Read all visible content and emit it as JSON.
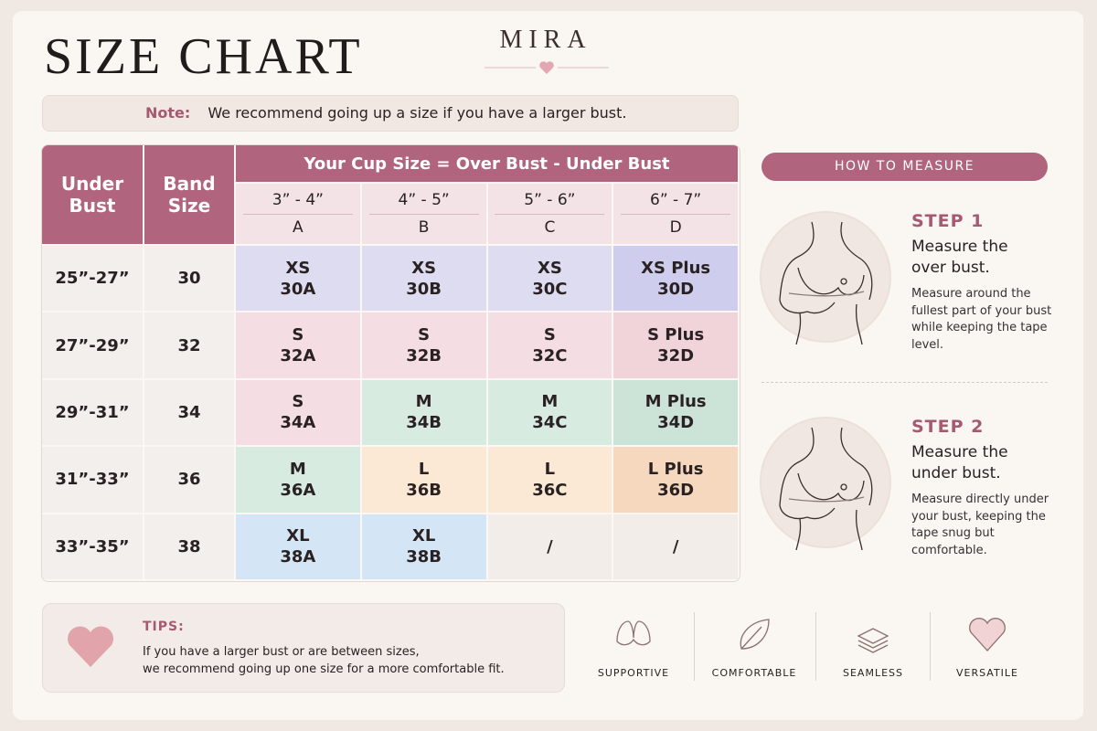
{
  "header": {
    "title": "SIZE CHART",
    "brand": "MIRA"
  },
  "note": {
    "label": "Note:",
    "text": "We recommend going up a size if you have a larger bust."
  },
  "table": {
    "headers": {
      "under_bust": "Under Bust",
      "band_size": "Band Size",
      "cup_size": "Your Cup Size = Over Bust - Under Bust"
    },
    "cups": [
      {
        "range": "3” - 4”",
        "letter": "A"
      },
      {
        "range": "4” - 5”",
        "letter": "B"
      },
      {
        "range": "5” - 6”",
        "letter": "C"
      },
      {
        "range": "6” - 7”",
        "letter": "D"
      }
    ],
    "rows": [
      {
        "under_bust": "25”-27”",
        "band": 30,
        "cells": [
          {
            "size": "XS",
            "code": "30A",
            "color": "#dedcf1"
          },
          {
            "size": "XS",
            "code": "30B",
            "color": "#dedcf1"
          },
          {
            "size": "XS",
            "code": "30C",
            "color": "#dedcf1"
          },
          {
            "size": "XS Plus",
            "code": "30D",
            "color": "#cfcdee"
          }
        ]
      },
      {
        "under_bust": "27”-29”",
        "band": 32,
        "cells": [
          {
            "size": "S",
            "code": "32A",
            "color": "#f5dee3"
          },
          {
            "size": "S",
            "code": "32B",
            "color": "#f5dee3"
          },
          {
            "size": "S",
            "code": "32C",
            "color": "#f5dee3"
          },
          {
            "size": "S Plus",
            "code": "32D",
            "color": "#f1d3da"
          }
        ]
      },
      {
        "under_bust": "29”-31”",
        "band": 34,
        "cells": [
          {
            "size": "S",
            "code": "34A",
            "color": "#f5dee3"
          },
          {
            "size": "M",
            "code": "34B",
            "color": "#d7ebe1"
          },
          {
            "size": "M",
            "code": "34C",
            "color": "#d7ebe1"
          },
          {
            "size": "M Plus",
            "code": "34D",
            "color": "#cce4d8"
          }
        ]
      },
      {
        "under_bust": "31”-33”",
        "band": 36,
        "cells": [
          {
            "size": "M",
            "code": "36A",
            "color": "#d7ebe1"
          },
          {
            "size": "L",
            "code": "36B",
            "color": "#fbe9d6"
          },
          {
            "size": "L",
            "code": "36C",
            "color": "#fbe9d6"
          },
          {
            "size": "L Plus",
            "code": "36D",
            "color": "#f6d8bf"
          }
        ]
      },
      {
        "under_bust": "33”-35”",
        "band": 38,
        "cells": [
          {
            "size": "XL",
            "code": "38A",
            "color": "#d4e6f6"
          },
          {
            "size": "XL",
            "code": "38B",
            "color": "#d4e6f6"
          },
          {
            "size": "/",
            "color": "#f2ede9"
          },
          {
            "size": "/",
            "color": "#f2ede9"
          }
        ]
      }
    ]
  },
  "measure": {
    "title": "HOW TO MEASURE",
    "steps": [
      {
        "label": "STEP 1",
        "heading": "Measure the over bust.",
        "text": "Measure around the fullest part of your bust while keeping the tape level."
      },
      {
        "label": "STEP 2",
        "heading": "Measure the under bust.",
        "text": "Measure directly under your bust, keeping the tape snug but comfortable."
      }
    ]
  },
  "tips": {
    "label": "TIPS:",
    "lines": [
      "If you have a larger bust or are between sizes,",
      "we recommend going up one size for a more comfortable fit."
    ]
  },
  "features": [
    "SUPPORTIVE",
    "COMFORTABLE",
    "SEAMLESS",
    "VERSATILE"
  ]
}
